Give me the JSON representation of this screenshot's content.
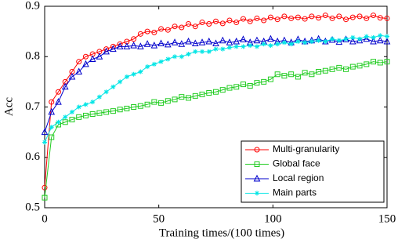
{
  "chart_data": {
    "type": "line",
    "x_label": "Training times/(100 times)",
    "y_label": "Acc",
    "x": [
      0,
      3,
      6,
      9,
      12,
      15,
      18,
      21,
      24,
      27,
      30,
      33,
      36,
      39,
      42,
      45,
      48,
      51,
      54,
      57,
      60,
      63,
      66,
      69,
      72,
      75,
      78,
      81,
      84,
      87,
      90,
      93,
      96,
      99,
      102,
      105,
      108,
      111,
      114,
      117,
      120,
      123,
      126,
      129,
      132,
      135,
      138,
      141,
      144,
      147,
      150
    ],
    "xlim": [
      0,
      150
    ],
    "xticks": [
      0,
      50,
      100,
      150
    ],
    "ylim": [
      0.5,
      0.9
    ],
    "yticks": [
      0.5,
      0.6,
      0.7,
      0.8,
      0.9
    ],
    "legend": "lower right",
    "series": [
      {
        "name": "Multi-granularity",
        "color": "#ff0000",
        "marker": "circle",
        "values": [
          0.54,
          0.71,
          0.73,
          0.75,
          0.77,
          0.79,
          0.8,
          0.805,
          0.81,
          0.815,
          0.82,
          0.825,
          0.83,
          0.835,
          0.845,
          0.85,
          0.848,
          0.855,
          0.853,
          0.86,
          0.858,
          0.865,
          0.86,
          0.868,
          0.865,
          0.87,
          0.866,
          0.872,
          0.868,
          0.875,
          0.87,
          0.876,
          0.872,
          0.878,
          0.874,
          0.88,
          0.876,
          0.878,
          0.875,
          0.88,
          0.877,
          0.882,
          0.876,
          0.88,
          0.874,
          0.878,
          0.88,
          0.876,
          0.882,
          0.877,
          0.876
        ]
      },
      {
        "name": "Global face",
        "color": "#22cc22",
        "marker": "square",
        "values": [
          0.52,
          0.64,
          0.665,
          0.67,
          0.675,
          0.68,
          0.683,
          0.686,
          0.688,
          0.69,
          0.692,
          0.695,
          0.697,
          0.7,
          0.702,
          0.705,
          0.71,
          0.708,
          0.712,
          0.715,
          0.72,
          0.718,
          0.722,
          0.725,
          0.728,
          0.73,
          0.734,
          0.738,
          0.74,
          0.745,
          0.742,
          0.748,
          0.75,
          0.755,
          0.765,
          0.762,
          0.765,
          0.76,
          0.768,
          0.765,
          0.77,
          0.772,
          0.775,
          0.778,
          0.775,
          0.78,
          0.782,
          0.785,
          0.79,
          0.788,
          0.79
        ]
      },
      {
        "name": "Local region",
        "color": "#0000cc",
        "marker": "triangle",
        "values": [
          0.65,
          0.69,
          0.71,
          0.74,
          0.76,
          0.77,
          0.785,
          0.795,
          0.8,
          0.81,
          0.815,
          0.82,
          0.82,
          0.822,
          0.82,
          0.825,
          0.822,
          0.826,
          0.824,
          0.828,
          0.825,
          0.83,
          0.826,
          0.828,
          0.83,
          0.826,
          0.832,
          0.828,
          0.83,
          0.834,
          0.828,
          0.832,
          0.83,
          0.835,
          0.83,
          0.832,
          0.828,
          0.834,
          0.83,
          0.832,
          0.835,
          0.83,
          0.833,
          0.829,
          0.834,
          0.83,
          0.832,
          0.835,
          0.83,
          0.832,
          0.83
        ]
      },
      {
        "name": "Main parts",
        "color": "#00e5e5",
        "marker": "star",
        "values": [
          0.63,
          0.66,
          0.67,
          0.68,
          0.69,
          0.7,
          0.705,
          0.71,
          0.72,
          0.73,
          0.74,
          0.75,
          0.76,
          0.765,
          0.77,
          0.78,
          0.785,
          0.79,
          0.795,
          0.8,
          0.8,
          0.805,
          0.81,
          0.81,
          0.81,
          0.815,
          0.815,
          0.818,
          0.82,
          0.82,
          0.822,
          0.82,
          0.825,
          0.822,
          0.825,
          0.828,
          0.825,
          0.83,
          0.828,
          0.83,
          0.832,
          0.83,
          0.835,
          0.832,
          0.835,
          0.838,
          0.835,
          0.84,
          0.838,
          0.842,
          0.84
        ]
      }
    ]
  }
}
